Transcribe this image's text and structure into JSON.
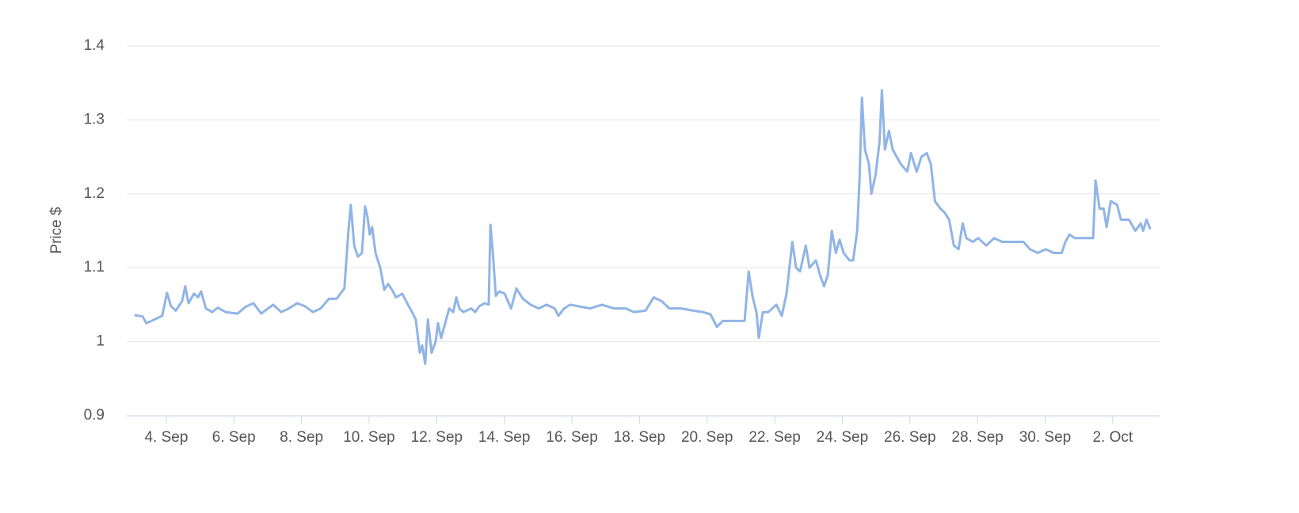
{
  "chart_data": {
    "type": "line",
    "y_label": "Price $",
    "color": "#90b4e6",
    "grid": true,
    "xlim": [
      2.83,
      33.41
    ],
    "ylim": [
      0.9,
      1.4
    ],
    "yticks": [
      0.9,
      1,
      1.1,
      1.2,
      1.3,
      1.4
    ],
    "xticks": [
      {
        "value": 4,
        "label": "4. Sep"
      },
      {
        "value": 6,
        "label": "6. Sep"
      },
      {
        "value": 8,
        "label": "8. Sep"
      },
      {
        "value": 10,
        "label": "10. Sep"
      },
      {
        "value": 12,
        "label": "12. Sep"
      },
      {
        "value": 14,
        "label": "14. Sep"
      },
      {
        "value": 16,
        "label": "16. Sep"
      },
      {
        "value": 18,
        "label": "18. Sep"
      },
      {
        "value": 20,
        "label": "20. Sep"
      },
      {
        "value": 22,
        "label": "22. Sep"
      },
      {
        "value": 24,
        "label": "24. Sep"
      },
      {
        "value": 26,
        "label": "26. Sep"
      },
      {
        "value": 28,
        "label": "28. Sep"
      },
      {
        "value": 30,
        "label": "30. Sep"
      },
      {
        "value": 32,
        "label": "2. Oct"
      }
    ],
    "x": [
      3.06,
      3.3,
      3.41,
      3.65,
      3.88,
      4.02,
      4.14,
      4.28,
      4.47,
      4.56,
      4.66,
      4.82,
      4.94,
      5.03,
      5.17,
      5.36,
      5.52,
      5.76,
      6.11,
      6.34,
      6.58,
      6.81,
      7.16,
      7.4,
      7.63,
      7.87,
      8.1,
      8.34,
      8.57,
      8.81,
      9.04,
      9.27,
      9.39,
      9.46,
      9.56,
      9.67,
      9.79,
      9.88,
      9.95,
      10.02,
      10.09,
      10.19,
      10.33,
      10.45,
      10.56,
      10.68,
      10.8,
      10.98,
      11.15,
      11.27,
      11.38,
      11.5,
      11.57,
      11.66,
      11.74,
      11.85,
      11.97,
      12.04,
      12.13,
      12.25,
      12.37,
      12.49,
      12.58,
      12.67,
      12.79,
      13.02,
      13.14,
      13.26,
      13.42,
      13.54,
      13.59,
      13.66,
      13.75,
      13.85,
      14.01,
      14.2,
      14.36,
      14.55,
      14.78,
      15.02,
      15.25,
      15.49,
      15.6,
      15.77,
      15.95,
      16.19,
      16.54,
      16.89,
      17.24,
      17.6,
      17.83,
      18.18,
      18.42,
      18.65,
      18.88,
      19.24,
      19.59,
      19.87,
      20.1,
      20.29,
      20.46,
      20.76,
      21.11,
      21.23,
      21.35,
      21.46,
      21.53,
      21.65,
      21.81,
      22.05,
      22.21,
      22.35,
      22.52,
      22.63,
      22.75,
      22.92,
      23.03,
      23.22,
      23.34,
      23.46,
      23.57,
      23.69,
      23.81,
      23.92,
      24.04,
      24.21,
      24.32,
      24.44,
      24.51,
      24.58,
      24.67,
      24.79,
      24.86,
      24.98,
      25.1,
      25.17,
      25.26,
      25.38,
      25.49,
      25.61,
      25.73,
      25.92,
      26.03,
      26.2,
      26.34,
      26.5,
      26.62,
      26.74,
      26.9,
      27.02,
      27.16,
      27.3,
      27.44,
      27.56,
      27.67,
      27.86,
      28.02,
      28.26,
      28.49,
      28.73,
      29.08,
      29.36,
      29.55,
      29.78,
      30.02,
      30.25,
      30.49,
      30.6,
      30.72,
      30.88,
      31.42,
      31.49,
      31.61,
      31.73,
      31.82,
      31.94,
      32.13,
      32.24,
      32.48,
      32.67,
      32.83,
      32.9,
      33.0,
      33.11
    ],
    "values": [
      1.036,
      1.034,
      1.025,
      1.03,
      1.035,
      1.066,
      1.048,
      1.042,
      1.055,
      1.075,
      1.052,
      1.065,
      1.06,
      1.068,
      1.045,
      1.04,
      1.046,
      1.04,
      1.038,
      1.047,
      1.052,
      1.038,
      1.05,
      1.04,
      1.045,
      1.052,
      1.048,
      1.04,
      1.045,
      1.058,
      1.058,
      1.072,
      1.15,
      1.185,
      1.13,
      1.115,
      1.12,
      1.183,
      1.17,
      1.145,
      1.155,
      1.12,
      1.1,
      1.07,
      1.078,
      1.07,
      1.06,
      1.065,
      1.05,
      1.04,
      1.03,
      0.985,
      0.995,
      0.97,
      1.03,
      0.985,
      1.0,
      1.025,
      1.005,
      1.025,
      1.045,
      1.04,
      1.06,
      1.045,
      1.04,
      1.045,
      1.04,
      1.048,
      1.052,
      1.05,
      1.158,
      1.12,
      1.062,
      1.068,
      1.065,
      1.045,
      1.072,
      1.058,
      1.05,
      1.045,
      1.05,
      1.045,
      1.035,
      1.045,
      1.05,
      1.048,
      1.045,
      1.05,
      1.045,
      1.045,
      1.04,
      1.042,
      1.06,
      1.055,
      1.045,
      1.045,
      1.042,
      1.04,
      1.037,
      1.02,
      1.028,
      1.028,
      1.028,
      1.095,
      1.06,
      1.04,
      1.005,
      1.04,
      1.04,
      1.05,
      1.035,
      1.065,
      1.135,
      1.1,
      1.095,
      1.13,
      1.1,
      1.11,
      1.09,
      1.075,
      1.09,
      1.15,
      1.12,
      1.138,
      1.12,
      1.11,
      1.11,
      1.15,
      1.22,
      1.33,
      1.26,
      1.24,
      1.2,
      1.225,
      1.27,
      1.34,
      1.26,
      1.285,
      1.26,
      1.25,
      1.24,
      1.23,
      1.255,
      1.23,
      1.25,
      1.255,
      1.24,
      1.19,
      1.18,
      1.175,
      1.165,
      1.13,
      1.125,
      1.16,
      1.14,
      1.135,
      1.14,
      1.13,
      1.14,
      1.135,
      1.135,
      1.135,
      1.125,
      1.12,
      1.125,
      1.12,
      1.12,
      1.135,
      1.145,
      1.14,
      1.14,
      1.218,
      1.18,
      1.18,
      1.155,
      1.19,
      1.185,
      1.165,
      1.165,
      1.15,
      1.16,
      1.15,
      1.165,
      1.152
    ]
  }
}
